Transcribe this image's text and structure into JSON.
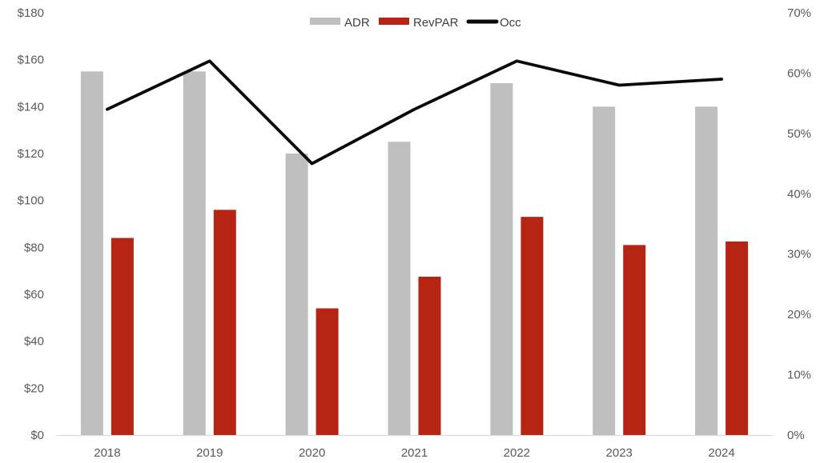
{
  "chart_data": {
    "type": "combo",
    "categories": [
      "2018",
      "2019",
      "2020",
      "2021",
      "2022",
      "2023",
      "2024"
    ],
    "series": [
      {
        "name": "ADR",
        "type": "bar",
        "axis": "left",
        "color": "#BFBFBF",
        "values": [
          155,
          155,
          120,
          125,
          150,
          140,
          140
        ]
      },
      {
        "name": "RevPAR",
        "type": "bar",
        "axis": "left",
        "color": "#B62413",
        "values": [
          84,
          96,
          54,
          67.5,
          93,
          81,
          82.5
        ]
      },
      {
        "name": "Occ",
        "type": "line",
        "axis": "right",
        "color": "#0A0A0A",
        "values": [
          54,
          62,
          45,
          54,
          62,
          58,
          59
        ]
      }
    ],
    "left_axis": {
      "min": 0,
      "max": 180,
      "step": 20,
      "prefix": "$",
      "ticks": [
        "$0",
        "$20",
        "$40",
        "$60",
        "$80",
        "$100",
        "$120",
        "$140",
        "$160",
        "$180"
      ]
    },
    "right_axis": {
      "min": 0,
      "max": 70,
      "step": 10,
      "suffix": "%",
      "ticks": [
        "0%",
        "10%",
        "20%",
        "30%",
        "40%",
        "50%",
        "60%",
        "70%"
      ]
    },
    "legend": {
      "position": "top",
      "entries": [
        "ADR",
        "RevPAR",
        "Occ"
      ]
    },
    "grid": false
  },
  "styles": {
    "background": "#FFFFFF",
    "axis_line_color": "#D9D9D9",
    "tick_label_color": "#595959",
    "legend_label_color": "#404040"
  }
}
